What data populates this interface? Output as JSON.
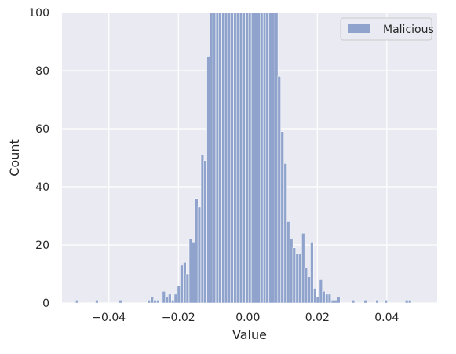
{
  "chart_data": {
    "type": "bar",
    "subtype": "histogram",
    "title": "",
    "xlabel": "Value",
    "ylabel": "Count",
    "xlim": [
      -0.0535,
      0.0545
    ],
    "ylim": [
      0,
      100
    ],
    "xticks": [
      -0.04,
      -0.02,
      0.0,
      0.02,
      0.04
    ],
    "xtick_labels": [
      "−0.04",
      "−0.02",
      "0.00",
      "0.02",
      "0.04"
    ],
    "yticks": [
      0,
      20,
      40,
      60,
      80,
      100
    ],
    "ytick_labels": [
      "0",
      "20",
      "40",
      "60",
      "80",
      "100"
    ],
    "grid": true,
    "legend": {
      "position": "top-right",
      "entries": [
        "Malicious"
      ]
    },
    "colors": {
      "bar": "#8fa3cc",
      "plot_background": "#eaeaf2",
      "grid": "#ffffff",
      "text": "#262626"
    },
    "bin_width": 0.000854,
    "series": [
      {
        "name": "Malicious",
        "bins": [
          [
            -0.0496,
            1
          ],
          [
            -0.0439,
            1
          ],
          [
            -0.0371,
            1
          ],
          [
            -0.0289,
            1
          ],
          [
            -0.028,
            2
          ],
          [
            -0.0272,
            1
          ],
          [
            -0.0263,
            1
          ],
          [
            -0.0246,
            4
          ],
          [
            -0.0237,
            2
          ],
          [
            -0.0229,
            3
          ],
          [
            -0.022,
            1
          ],
          [
            -0.0212,
            3
          ],
          [
            -0.0203,
            6
          ],
          [
            -0.0195,
            13
          ],
          [
            -0.0186,
            14
          ],
          [
            -0.0178,
            10
          ],
          [
            -0.0169,
            22
          ],
          [
            -0.0161,
            21
          ],
          [
            -0.0152,
            36
          ],
          [
            -0.0144,
            33
          ],
          [
            -0.0135,
            51
          ],
          [
            -0.0127,
            49
          ],
          [
            -0.0118,
            85
          ],
          [
            -0.0109,
            100
          ],
          [
            -0.0101,
            100
          ],
          [
            -0.0092,
            100
          ],
          [
            -0.0084,
            100
          ],
          [
            -0.0075,
            100
          ],
          [
            -0.0067,
            100
          ],
          [
            -0.0058,
            100
          ],
          [
            -0.005,
            100
          ],
          [
            -0.0041,
            100
          ],
          [
            -0.0033,
            100
          ],
          [
            -0.0024,
            100
          ],
          [
            -0.0016,
            100
          ],
          [
            -0.0007,
            100
          ],
          [
            0.0001,
            100
          ],
          [
            0.001,
            100
          ],
          [
            0.0018,
            100
          ],
          [
            0.0027,
            100
          ],
          [
            0.0035,
            100
          ],
          [
            0.0044,
            100
          ],
          [
            0.0052,
            100
          ],
          [
            0.0061,
            100
          ],
          [
            0.0069,
            100
          ],
          [
            0.0078,
            100
          ],
          [
            0.0086,
            78
          ],
          [
            0.0095,
            59
          ],
          [
            0.0104,
            48
          ],
          [
            0.0112,
            28
          ],
          [
            0.0121,
            22
          ],
          [
            0.0129,
            19
          ],
          [
            0.0138,
            17
          ],
          [
            0.0146,
            17
          ],
          [
            0.0155,
            24
          ],
          [
            0.0163,
            12
          ],
          [
            0.0172,
            9
          ],
          [
            0.018,
            21
          ],
          [
            0.0189,
            5
          ],
          [
            0.0197,
            2
          ],
          [
            0.0206,
            8
          ],
          [
            0.0214,
            4
          ],
          [
            0.0223,
            3
          ],
          [
            0.0231,
            3
          ],
          [
            0.024,
            1
          ],
          [
            0.0248,
            1
          ],
          [
            0.0257,
            2
          ],
          [
            0.0299,
            1
          ],
          [
            0.0334,
            1
          ],
          [
            0.0368,
            1
          ],
          [
            0.0393,
            1
          ],
          [
            0.0453,
            1
          ],
          [
            0.0462,
            1
          ]
        ]
      }
    ]
  }
}
